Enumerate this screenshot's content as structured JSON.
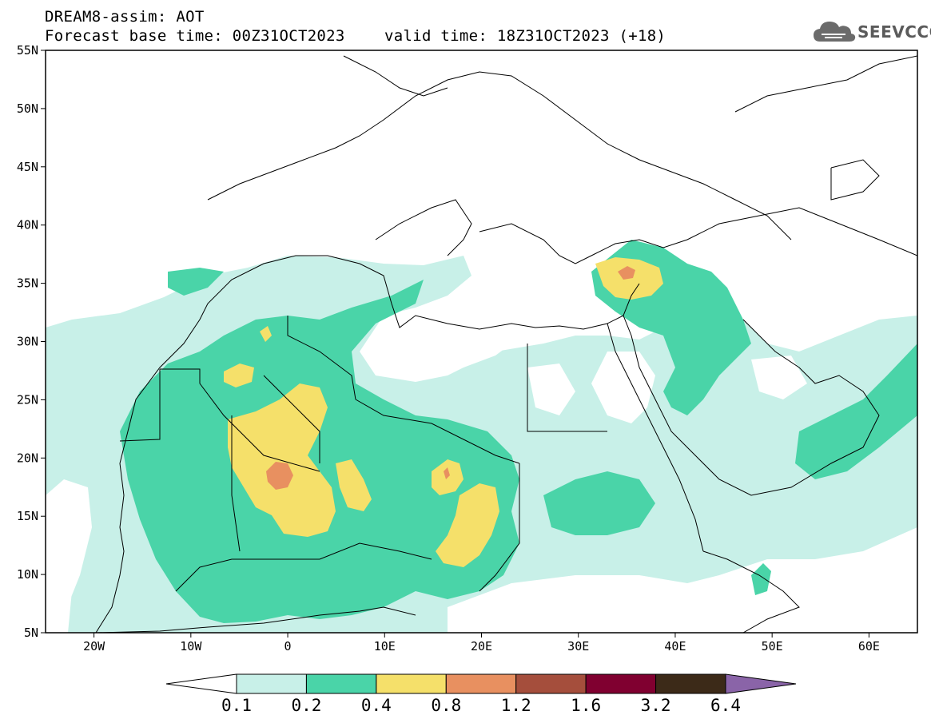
{
  "header": {
    "title": "DREAM8-assim: AOT",
    "base_time": "Forecast base time: 00Z31OCT2023",
    "valid_time": "valid time: 18Z31OCT2023 (+18)",
    "logo_text": "SEEVCCC"
  },
  "map": {
    "lon_range": [
      -25,
      65
    ],
    "lat_range": [
      5,
      55
    ],
    "lat_labels": [
      "55N",
      "50N",
      "45N",
      "40N",
      "35N",
      "30N",
      "25N",
      "20N",
      "15N",
      "10N",
      "5N"
    ],
    "lon_labels": [
      "20W",
      "10W",
      "0",
      "10E",
      "20E",
      "30E",
      "40E",
      "50E",
      "60E"
    ]
  },
  "colorbar": {
    "labels": [
      "0.1",
      "0.2",
      "0.4",
      "0.8",
      "1.2",
      "1.6",
      "3.2",
      "6.4"
    ],
    "colors": [
      "#ffffff",
      "#c8f0e8",
      "#4ad4a8",
      "#f5e06a",
      "#e89060",
      "#a54e3c",
      "#800030",
      "#3c2a18",
      "#8a64a8"
    ]
  }
}
